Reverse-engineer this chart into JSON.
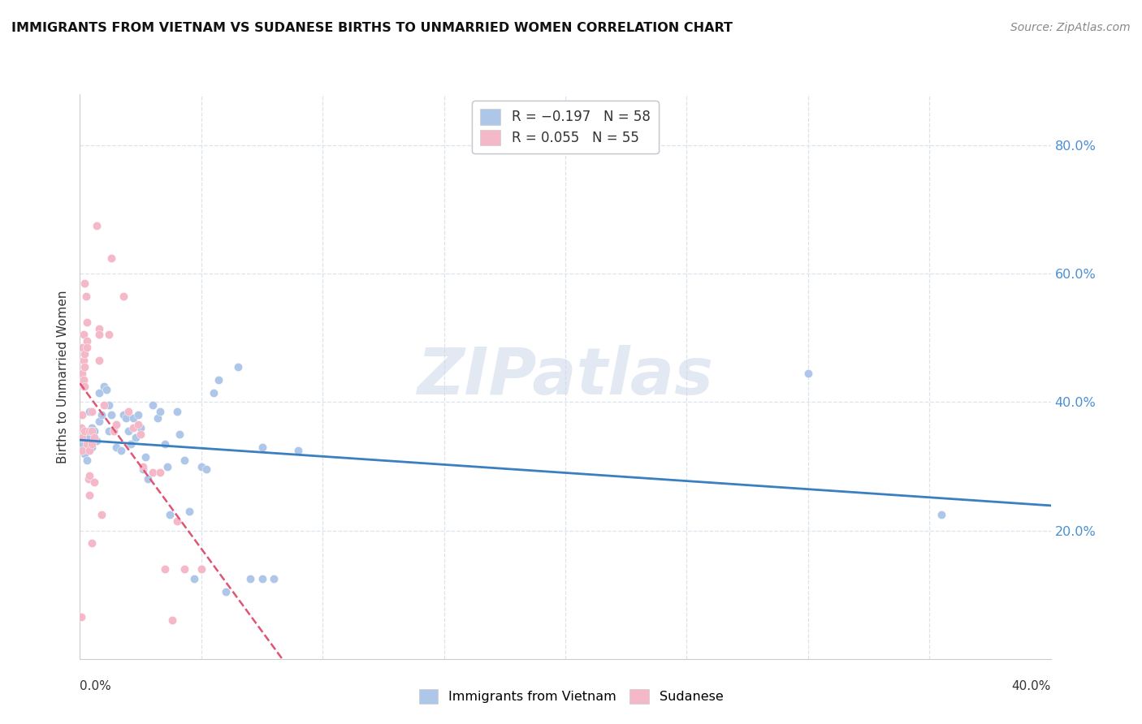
{
  "title": "IMMIGRANTS FROM VIETNAM VS SUDANESE BIRTHS TO UNMARRIED WOMEN CORRELATION CHART",
  "source": "Source: ZipAtlas.com",
  "ylabel": "Births to Unmarried Women",
  "legend_label_blue": "Immigrants from Vietnam",
  "legend_label_pink": "Sudanese",
  "watermark": "ZIPatlas",
  "blue_color": "#aec6e8",
  "pink_color": "#f5b8c8",
  "blue_line_color": "#3a7fc1",
  "pink_line_color": "#e05575",
  "blue_scatter": [
    [
      0.001,
      0.335
    ],
    [
      0.002,
      0.32
    ],
    [
      0.002,
      0.355
    ],
    [
      0.003,
      0.34
    ],
    [
      0.003,
      0.31
    ],
    [
      0.004,
      0.345
    ],
    [
      0.004,
      0.385
    ],
    [
      0.005,
      0.36
    ],
    [
      0.005,
      0.33
    ],
    [
      0.006,
      0.355
    ],
    [
      0.007,
      0.34
    ],
    [
      0.008,
      0.37
    ],
    [
      0.008,
      0.415
    ],
    [
      0.009,
      0.38
    ],
    [
      0.01,
      0.425
    ],
    [
      0.011,
      0.42
    ],
    [
      0.012,
      0.355
    ],
    [
      0.012,
      0.395
    ],
    [
      0.013,
      0.38
    ],
    [
      0.014,
      0.355
    ],
    [
      0.015,
      0.365
    ],
    [
      0.015,
      0.33
    ],
    [
      0.017,
      0.325
    ],
    [
      0.018,
      0.38
    ],
    [
      0.019,
      0.375
    ],
    [
      0.02,
      0.355
    ],
    [
      0.021,
      0.335
    ],
    [
      0.022,
      0.375
    ],
    [
      0.023,
      0.345
    ],
    [
      0.024,
      0.38
    ],
    [
      0.025,
      0.36
    ],
    [
      0.026,
      0.295
    ],
    [
      0.027,
      0.315
    ],
    [
      0.028,
      0.28
    ],
    [
      0.03,
      0.395
    ],
    [
      0.032,
      0.375
    ],
    [
      0.033,
      0.385
    ],
    [
      0.035,
      0.335
    ],
    [
      0.036,
      0.3
    ],
    [
      0.037,
      0.225
    ],
    [
      0.04,
      0.385
    ],
    [
      0.041,
      0.35
    ],
    [
      0.043,
      0.31
    ],
    [
      0.045,
      0.23
    ],
    [
      0.047,
      0.125
    ],
    [
      0.05,
      0.3
    ],
    [
      0.052,
      0.295
    ],
    [
      0.055,
      0.415
    ],
    [
      0.057,
      0.435
    ],
    [
      0.06,
      0.105
    ],
    [
      0.065,
      0.455
    ],
    [
      0.07,
      0.125
    ],
    [
      0.075,
      0.125
    ],
    [
      0.075,
      0.33
    ],
    [
      0.08,
      0.125
    ],
    [
      0.09,
      0.325
    ],
    [
      0.3,
      0.445
    ],
    [
      0.355,
      0.225
    ]
  ],
  "pink_scatter": [
    [
      0.0005,
      0.36
    ],
    [
      0.001,
      0.38
    ],
    [
      0.001,
      0.345
    ],
    [
      0.001,
      0.325
    ],
    [
      0.001,
      0.445
    ],
    [
      0.001,
      0.485
    ],
    [
      0.0015,
      0.505
    ],
    [
      0.0015,
      0.465
    ],
    [
      0.0015,
      0.425
    ],
    [
      0.0015,
      0.435
    ],
    [
      0.002,
      0.475
    ],
    [
      0.002,
      0.455
    ],
    [
      0.002,
      0.425
    ],
    [
      0.002,
      0.355
    ],
    [
      0.002,
      0.585
    ],
    [
      0.0025,
      0.565
    ],
    [
      0.003,
      0.525
    ],
    [
      0.003,
      0.495
    ],
    [
      0.003,
      0.485
    ],
    [
      0.003,
      0.335
    ],
    [
      0.0035,
      0.28
    ],
    [
      0.004,
      0.355
    ],
    [
      0.004,
      0.325
    ],
    [
      0.004,
      0.285
    ],
    [
      0.004,
      0.255
    ],
    [
      0.005,
      0.385
    ],
    [
      0.005,
      0.355
    ],
    [
      0.005,
      0.335
    ],
    [
      0.005,
      0.18
    ],
    [
      0.006,
      0.345
    ],
    [
      0.006,
      0.275
    ],
    [
      0.007,
      0.675
    ],
    [
      0.008,
      0.515
    ],
    [
      0.008,
      0.505
    ],
    [
      0.008,
      0.465
    ],
    [
      0.009,
      0.225
    ],
    [
      0.01,
      0.395
    ],
    [
      0.012,
      0.505
    ],
    [
      0.013,
      0.625
    ],
    [
      0.014,
      0.355
    ],
    [
      0.015,
      0.365
    ],
    [
      0.018,
      0.565
    ],
    [
      0.02,
      0.385
    ],
    [
      0.022,
      0.36
    ],
    [
      0.024,
      0.365
    ],
    [
      0.025,
      0.35
    ],
    [
      0.026,
      0.3
    ],
    [
      0.03,
      0.29
    ],
    [
      0.033,
      0.29
    ],
    [
      0.035,
      0.14
    ],
    [
      0.038,
      0.06
    ],
    [
      0.04,
      0.215
    ],
    [
      0.043,
      0.14
    ],
    [
      0.05,
      0.14
    ],
    [
      0.0005,
      0.065
    ]
  ],
  "xlim": [
    0.0,
    0.4
  ],
  "ylim": [
    0.0,
    0.88
  ],
  "x_tick_positions": [
    0.0,
    0.05,
    0.1,
    0.15,
    0.2,
    0.25,
    0.3,
    0.35,
    0.4
  ],
  "y_tick_positions": [
    0.0,
    0.2,
    0.4,
    0.6,
    0.8
  ],
  "right_y_labels": [
    "20.0%",
    "40.0%",
    "60.0%",
    "80.0%"
  ],
  "background_color": "#ffffff",
  "grid_color": "#dde3ec"
}
